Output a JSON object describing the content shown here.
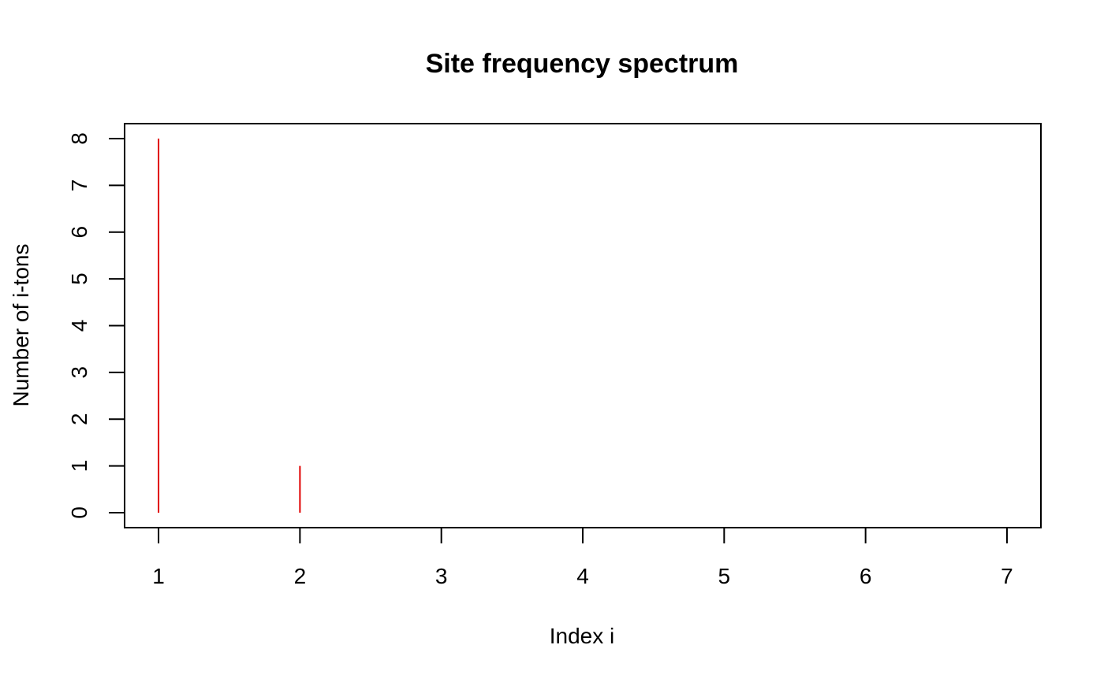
{
  "chart_data": {
    "type": "bar",
    "title": "Site frequency spectrum",
    "xlabel": "Index i",
    "ylabel": "Number of i-tons",
    "x": [
      1,
      2,
      3,
      4,
      5,
      6,
      7
    ],
    "values": [
      8,
      1,
      0,
      0,
      0,
      0,
      0
    ],
    "x_ticks": [
      "1",
      "2",
      "3",
      "4",
      "5",
      "6",
      "7"
    ],
    "y_ticks": [
      "0",
      "1",
      "2",
      "3",
      "4",
      "5",
      "6",
      "7",
      "8"
    ],
    "xlim": [
      0.76,
      7.24
    ],
    "ylim": [
      -0.32,
      8.32
    ],
    "grid": false,
    "mark_color": "#e00000",
    "axis_color": "#000000"
  }
}
